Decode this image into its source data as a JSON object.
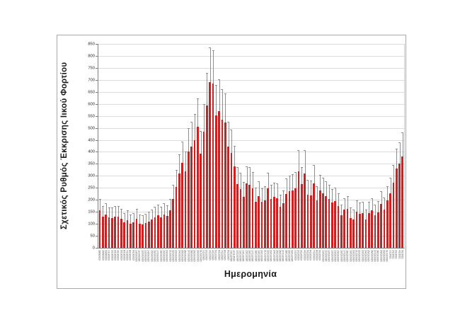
{
  "chart_data": {
    "type": "bar",
    "title": "",
    "ylabel": "Σχετικός Ρυθμός Έκκρισης Ιικού Φορτίου",
    "xlabel": "Ημερομηνία",
    "ylim": [
      0,
      850
    ],
    "ytick_step": 50,
    "grid": true,
    "legend_position": "none",
    "bar_color": "#ce2020",
    "error_bar_color": "#8f8f8f",
    "categories": [
      "28/9/2020",
      "29/9/2020",
      "30/9/2020",
      "1/10/2020",
      "2/10/2020",
      "3/10/2020",
      "4/10/2020",
      "5/10/2020",
      "6/10/2020",
      "7/10/2020",
      "8/10/2020",
      "9/10/2020",
      "10/10/2020",
      "11/10/2020",
      "12/10/2020",
      "13/10/2020",
      "14/10/2020",
      "15/10/2020",
      "16/10/2020",
      "17/10/2020",
      "18/10/2020",
      "19/10/2020",
      "20/10/2020",
      "21/10/2020",
      "22/10/2020",
      "23/10/2020",
      "24/10/2020",
      "25/10/2020",
      "26/10/2020",
      "27/10/2020",
      "28/10/2020",
      "29/10/2020",
      "30/10/2020",
      "31/10/2020",
      "1/11/2020",
      "2/11/2020",
      "3/11/2020",
      "4/11/2020",
      "5/11/2020",
      "6/11/2020",
      "7/11/2020",
      "8/11/2020",
      "9/11/2020",
      "10/11/2020",
      "11/11/2020",
      "12/11/2020",
      "13/11/2020",
      "14/11/2020",
      "15/11/2020",
      "16/11/2020",
      "17/11/2020",
      "18/11/2020",
      "19/11/2020",
      "20/11/2020",
      "21/11/2020",
      "22/11/2020",
      "23/11/2020",
      "24/11/2020",
      "25/11/2020",
      "26/11/2020",
      "27/11/2020",
      "28/11/2020",
      "29/11/2020",
      "30/11/2020",
      "1/12/2020",
      "2/12/2020",
      "3/12/2020",
      "4/12/2020",
      "5/12/2020",
      "6/12/2020",
      "7/12/2020",
      "8/12/2020",
      "9/12/2020",
      "10/12/2020",
      "11/12/2020",
      "12/12/2020",
      "13/12/2020",
      "14/12/2020",
      "15/12/2020",
      "16/12/2020",
      "17/12/2020",
      "18/12/2020",
      "19/12/2020",
      "20/12/2020",
      "21/12/2020",
      "22/12/2020",
      "23/12/2020",
      "24/12/2020",
      "25/12/2020",
      "26/12/2020",
      "27/12/2020",
      "28/12/2020",
      "29/12/2020",
      "30/12/2020",
      "31/12/2020",
      "1/1/2021",
      "2/1/2021",
      "3/1/2021",
      "4/1/2021",
      "5/1/2021"
    ],
    "series": [
      {
        "name": "Σχετικός Ρυθμός Έκκρισης Ιικού Φορτίου",
        "values": [
          155,
          130,
          140,
          126,
          125,
          131,
          130,
          120,
          106,
          115,
          100,
          106,
          120,
          101,
          98,
          104,
          110,
          118,
          127,
          136,
          128,
          139,
          133,
          155,
          205,
          255,
          310,
          355,
          320,
          400,
          422,
          450,
          505,
          392,
          483,
          592,
          690,
          684,
          551,
          570,
          535,
          522,
          422,
          395,
          338,
          265,
          245,
          213,
          268,
          264,
          248,
          193,
          215,
          192,
          198,
          247,
          203,
          212,
          208,
          170,
          185,
          225,
          235,
          240,
          248,
          318,
          265,
          310,
          220,
          218,
          270,
          199,
          238,
          228,
          215,
          205,
          188,
          195,
          175,
          135,
          158,
          163,
          125,
          118,
          150,
          143,
          145,
          118,
          145,
          157,
          135,
          147,
          182,
          160,
          198,
          228,
          272,
          330,
          352,
          380
        ],
        "errors_plus": [
          49,
          44,
          46,
          43,
          43,
          44,
          44,
          42,
          39,
          41,
          38,
          39,
          42,
          38,
          38,
          39,
          40,
          42,
          43,
          45,
          44,
          46,
          45,
          49,
          59,
          69,
          80,
          89,
          82,
          98,
          102,
          108,
          119,
          96,
          115,
          136,
          145,
          138,
          128,
          132,
          125,
          122,
          102,
          97,
          86,
          71,
          67,
          61,
          72,
          71,
          68,
          57,
          61,
          56,
          58,
          67,
          59,
          60,
          60,
          52,
          55,
          63,
          65,
          66,
          68,
          90,
          71,
          98,
          62,
          62,
          75,
          58,
          66,
          64,
          61,
          59,
          56,
          57,
          53,
          45,
          50,
          51,
          43,
          42,
          48,
          47,
          47,
          42,
          47,
          49,
          45,
          47,
          54,
          50,
          58,
          64,
          72,
          84,
          88,
          100
        ]
      }
    ]
  }
}
